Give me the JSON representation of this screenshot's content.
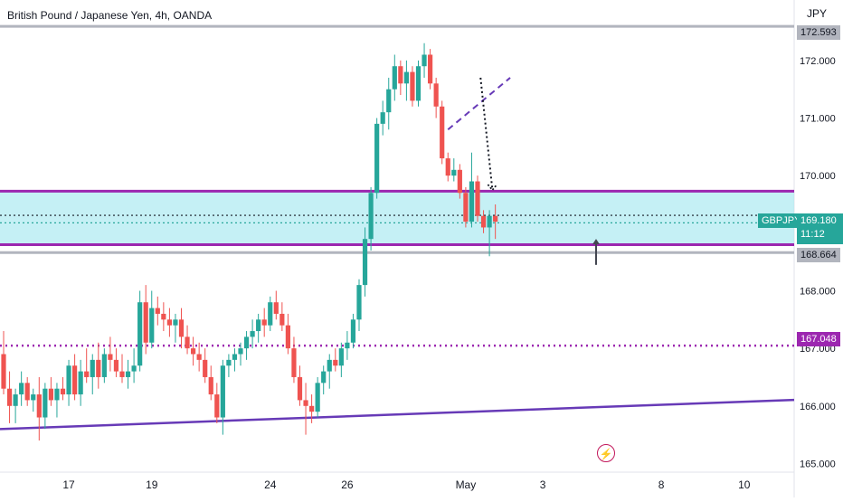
{
  "header": {
    "title": "British Pound / Japanese Yen, 4h, OANDA",
    "currency": "JPY"
  },
  "colors": {
    "up": "#26a69a",
    "down": "#ef5350",
    "zone": "#b2ebf2",
    "zone_border": "#9c27b0",
    "grey_line": "#b2b5be",
    "trendline": "#673ab7",
    "level_dotted": "#9c27b0"
  },
  "price_labels": {
    "top_level": "172.593",
    "current_symbol": "GBPJPY",
    "current_price": "169.180",
    "countdown": "11:12",
    "support_level": "168.664",
    "dotted_level": "167.048"
  },
  "chart_data": {
    "type": "candlestick",
    "symbol": "GBPJPY",
    "interval": "4h",
    "broker": "OANDA",
    "ylim": [
      164.85,
      173.05
    ],
    "y_ticks": [
      165,
      166,
      167,
      168,
      169,
      170,
      171,
      172
    ],
    "y_tick_labels": [
      "165.000",
      "166.000",
      "167.000",
      "168.000",
      "169.000",
      "170.000",
      "171.000",
      "172.000"
    ],
    "x_ticks": [
      {
        "bar": 11,
        "label": "17"
      },
      {
        "bar": 25,
        "label": "19"
      },
      {
        "bar": 45,
        "label": "24"
      },
      {
        "bar": 58,
        "label": "26"
      },
      {
        "bar": 78,
        "label": "May"
      },
      {
        "bar": 91,
        "label": "3"
      },
      {
        "bar": 111,
        "label": "8"
      },
      {
        "bar": 125,
        "label": "10"
      }
    ],
    "horizontal_levels": [
      {
        "price": 172.593,
        "style": "solid-grey"
      },
      {
        "price": 168.664,
        "style": "solid-grey"
      },
      {
        "price": 167.048,
        "style": "dotted-purple"
      },
      {
        "price": 169.31,
        "style": "dotted-black"
      },
      {
        "price": 169.18,
        "style": "dotted-teal"
      }
    ],
    "zone": {
      "low": 168.8,
      "high": 169.73
    },
    "trendline": {
      "from": {
        "bar": 0,
        "price": 165.6
      },
      "to": {
        "bar": 132,
        "price": 166.1
      }
    },
    "pattern": {
      "dashed_points": [
        {
          "bar": 75,
          "price": 170.8
        },
        {
          "bar": 85.5,
          "price": 171.7
        }
      ],
      "dotted_arrow": [
        {
          "bar": 80.5,
          "price": 171.7
        },
        {
          "bar": 82.5,
          "price": 169.75
        }
      ],
      "up_arrow": {
        "bar": 100,
        "from": 168.45,
        "to": 168.9
      }
    },
    "candles": [
      [
        166.9,
        167.3,
        166.2,
        166.3
      ],
      [
        166.3,
        166.6,
        165.7,
        166.0
      ],
      [
        166.0,
        166.3,
        165.7,
        166.2
      ],
      [
        166.2,
        166.6,
        166.0,
        166.4
      ],
      [
        166.4,
        166.5,
        166.0,
        166.1
      ],
      [
        166.1,
        166.3,
        165.9,
        166.2
      ],
      [
        166.2,
        166.5,
        165.4,
        165.8
      ],
      [
        165.8,
        166.4,
        165.6,
        166.3
      ],
      [
        166.3,
        166.5,
        166.0,
        166.1
      ],
      [
        166.1,
        166.4,
        165.8,
        166.3
      ],
      [
        166.3,
        166.5,
        166.1,
        166.2
      ],
      [
        166.2,
        166.8,
        166.0,
        166.7
      ],
      [
        166.7,
        166.9,
        166.1,
        166.2
      ],
      [
        166.2,
        166.8,
        166.0,
        166.6
      ],
      [
        166.6,
        167.0,
        166.4,
        166.5
      ],
      [
        166.5,
        166.9,
        166.2,
        166.8
      ],
      [
        166.8,
        167.1,
        166.3,
        166.5
      ],
      [
        166.5,
        167.0,
        166.4,
        166.9
      ],
      [
        166.9,
        167.2,
        166.6,
        166.8
      ],
      [
        166.8,
        167.0,
        166.5,
        166.6
      ],
      [
        166.6,
        166.9,
        166.4,
        166.5
      ],
      [
        166.5,
        166.8,
        166.3,
        166.6
      ],
      [
        166.6,
        167.0,
        166.4,
        166.7
      ],
      [
        166.7,
        168.0,
        166.6,
        167.8
      ],
      [
        167.8,
        168.1,
        166.9,
        167.1
      ],
      [
        167.1,
        168.0,
        167.0,
        167.7
      ],
      [
        167.7,
        167.9,
        167.4,
        167.6
      ],
      [
        167.6,
        167.8,
        167.3,
        167.5
      ],
      [
        167.5,
        167.7,
        167.2,
        167.4
      ],
      [
        167.4,
        167.6,
        167.1,
        167.5
      ],
      [
        167.5,
        167.7,
        167.0,
        167.2
      ],
      [
        167.2,
        167.4,
        166.9,
        167.0
      ],
      [
        167.0,
        167.2,
        166.7,
        166.9
      ],
      [
        166.9,
        167.1,
        166.6,
        166.8
      ],
      [
        166.8,
        167.0,
        166.4,
        166.5
      ],
      [
        166.5,
        166.7,
        166.1,
        166.2
      ],
      [
        166.2,
        166.4,
        165.7,
        165.8
      ],
      [
        165.8,
        166.8,
        165.5,
        166.7
      ],
      [
        166.7,
        166.9,
        166.5,
        166.8
      ],
      [
        166.8,
        167.0,
        166.6,
        166.9
      ],
      [
        166.9,
        167.1,
        166.7,
        167.0
      ],
      [
        167.0,
        167.3,
        166.8,
        167.2
      ],
      [
        167.2,
        167.5,
        167.0,
        167.3
      ],
      [
        167.3,
        167.6,
        167.1,
        167.5
      ],
      [
        167.5,
        167.7,
        167.2,
        167.4
      ],
      [
        167.4,
        167.9,
        167.3,
        167.8
      ],
      [
        167.8,
        168.0,
        167.5,
        167.6
      ],
      [
        167.6,
        167.8,
        167.3,
        167.4
      ],
      [
        167.4,
        167.6,
        166.9,
        167.0
      ],
      [
        167.0,
        167.2,
        166.4,
        166.5
      ],
      [
        166.5,
        166.7,
        166.0,
        166.1
      ],
      [
        166.1,
        166.4,
        165.5,
        166.0
      ],
      [
        166.0,
        166.2,
        165.7,
        165.9
      ],
      [
        165.9,
        166.5,
        165.8,
        166.4
      ],
      [
        166.4,
        166.7,
        166.2,
        166.6
      ],
      [
        166.6,
        166.9,
        166.3,
        166.8
      ],
      [
        166.8,
        167.0,
        166.6,
        166.7
      ],
      [
        166.7,
        167.1,
        166.5,
        167.0
      ],
      [
        167.0,
        167.3,
        166.8,
        167.1
      ],
      [
        167.1,
        167.6,
        167.0,
        167.5
      ],
      [
        167.5,
        168.2,
        167.3,
        168.1
      ],
      [
        168.1,
        169.1,
        167.9,
        168.9
      ],
      [
        168.9,
        169.8,
        168.7,
        169.7
      ],
      [
        169.7,
        171.0,
        169.6,
        170.9
      ],
      [
        170.9,
        171.3,
        170.7,
        171.1
      ],
      [
        171.1,
        171.7,
        170.8,
        171.5
      ],
      [
        171.5,
        172.1,
        171.3,
        171.9
      ],
      [
        171.9,
        172.0,
        171.4,
        171.6
      ],
      [
        171.6,
        172.0,
        171.3,
        171.8
      ],
      [
        171.8,
        171.9,
        171.2,
        171.3
      ],
      [
        171.3,
        172.0,
        171.2,
        171.9
      ],
      [
        171.9,
        172.3,
        171.7,
        172.1
      ],
      [
        172.1,
        172.2,
        171.5,
        171.6
      ],
      [
        171.6,
        171.7,
        171.0,
        171.2
      ],
      [
        171.2,
        171.3,
        170.2,
        170.3
      ],
      [
        170.3,
        170.4,
        169.9,
        170.0
      ],
      [
        170.0,
        170.3,
        169.9,
        170.1
      ],
      [
        170.1,
        170.2,
        169.6,
        169.7
      ],
      [
        169.7,
        169.8,
        169.1,
        169.2
      ],
      [
        169.2,
        170.4,
        169.1,
        169.9
      ],
      [
        169.9,
        170.0,
        169.2,
        169.3
      ],
      [
        169.3,
        169.4,
        169.0,
        169.1
      ],
      [
        169.1,
        169.4,
        168.6,
        169.3
      ],
      [
        169.3,
        169.5,
        168.9,
        169.2
      ]
    ]
  }
}
